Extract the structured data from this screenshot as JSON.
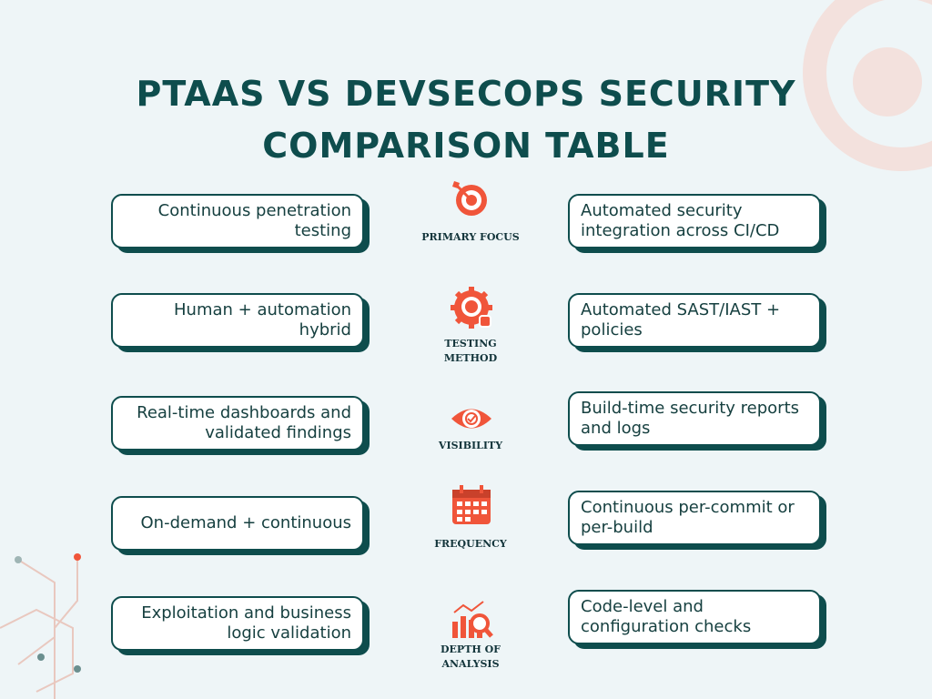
{
  "header": {
    "title_lines": [
      "PTAAS VS DEVSECOPS SECURITY",
      "COMPARISON TABLE"
    ]
  },
  "rows": [
    {
      "left": "Continuous penetration testing",
      "label": "PRIMARY FOCUS",
      "right": "Automated security integration across CI/CD"
    },
    {
      "left": "Human + automation hybrid",
      "label": "TESTING METHOD",
      "right": "Automated SAST/IAST + policies"
    },
    {
      "left": "Real-time dashboards and validated findings",
      "label": "VISIBILITY",
      "right": "Build-time security reports and logs"
    },
    {
      "left": "On-demand + continuous",
      "label": "FREQUENCY",
      "right": "Continuous per-commit or per-build"
    },
    {
      "left": "Exploitation and business logic validation",
      "label": "DEPTH OF ANALYSIS",
      "right": "Code-level and configuration checks"
    }
  ]
}
